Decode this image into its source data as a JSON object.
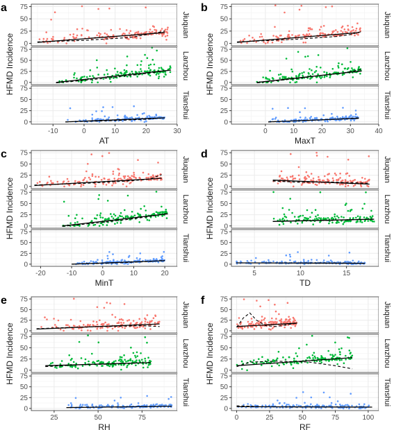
{
  "figure": {
    "panel_letters": [
      "a",
      "b",
      "c",
      "d",
      "e",
      "f"
    ],
    "facet_labels": [
      "Jiuquan",
      "Lanzhou",
      "Tianshui"
    ],
    "ylabel": "HFMD Incidence",
    "y_ticks": [
      "0",
      "25",
      "50",
      "75"
    ]
  },
  "colors": {
    "Jiuquan": "#f8766d",
    "Lanzhou": "#00ba38",
    "Tianshui": "#619cff",
    "strip_bg": "#ffffff",
    "grid": "#ebebeb",
    "panel_border": "#333333",
    "fit_line": "#000000"
  },
  "chart_data": [
    {
      "type": "scatter",
      "panel": "a",
      "xlabel": "AT",
      "xlim": [
        -17,
        30
      ],
      "xticks": [
        -10,
        0,
        10,
        20,
        30
      ],
      "ylim": [
        -5,
        80
      ],
      "grid": true,
      "series": [
        {
          "name": "Jiuquan",
          "x_range": [
            -15,
            27
          ],
          "y_range": [
            0,
            78
          ],
          "linear_fit": [
            [
              -15,
              2
            ],
            [
              26,
              22
            ]
          ],
          "smooth_fit": [
            [
              -15,
              3
            ],
            [
              0,
              6
            ],
            [
              15,
              12
            ],
            [
              22,
              20
            ],
            [
              26,
              25
            ]
          ]
        },
        {
          "name": "Lanzhou",
          "x_range": [
            -9,
            28
          ],
          "y_range": [
            0,
            80
          ],
          "linear_fit": [
            [
              -9,
              0
            ],
            [
              28,
              28
            ]
          ],
          "smooth_fit": [
            [
              -9,
              -1
            ],
            [
              5,
              8
            ],
            [
              15,
              16
            ],
            [
              22,
              22
            ],
            [
              28,
              28
            ]
          ]
        },
        {
          "name": "Tianshui",
          "x_range": [
            -6,
            26
          ],
          "y_range": [
            0,
            35
          ],
          "linear_fit": [
            [
              -6,
              0
            ],
            [
              26,
              9
            ]
          ],
          "smooth_fit": [
            [
              -6,
              0
            ],
            [
              10,
              3
            ],
            [
              20,
              6
            ],
            [
              26,
              9
            ]
          ]
        }
      ]
    },
    {
      "type": "scatter",
      "panel": "b",
      "xlabel": "MaxT",
      "xlim": [
        -12,
        40
      ],
      "xticks": [
        0,
        10,
        20,
        30,
        40
      ],
      "ylim": [
        -5,
        80
      ],
      "grid": true,
      "series": [
        {
          "name": "Jiuquan",
          "x_range": [
            -10,
            34
          ],
          "y_range": [
            0,
            78
          ],
          "linear_fit": [
            [
              -10,
              2
            ],
            [
              33,
              22
            ]
          ],
          "smooth_fit": [
            [
              -10,
              3
            ],
            [
              10,
              8
            ],
            [
              25,
              14
            ],
            [
              30,
              18
            ],
            [
              34,
              24
            ]
          ]
        },
        {
          "name": "Lanzhou",
          "x_range": [
            -3,
            34
          ],
          "y_range": [
            0,
            80
          ],
          "linear_fit": [
            [
              -3,
              0
            ],
            [
              34,
              26
            ]
          ],
          "smooth_fit": [
            [
              -3,
              -1
            ],
            [
              10,
              8
            ],
            [
              20,
              16
            ],
            [
              28,
              22
            ],
            [
              34,
              30
            ]
          ]
        },
        {
          "name": "Tianshui",
          "x_range": [
            1,
            33
          ],
          "y_range": [
            0,
            33
          ],
          "linear_fit": [
            [
              1,
              0
            ],
            [
              33,
              8
            ]
          ],
          "smooth_fit": [
            [
              1,
              0
            ],
            [
              15,
              3
            ],
            [
              25,
              6
            ],
            [
              33,
              9
            ]
          ]
        }
      ]
    },
    {
      "type": "scatter",
      "panel": "c",
      "xlabel": "MinT",
      "xlim": [
        -23,
        24
      ],
      "xticks": [
        -20,
        -10,
        0,
        10,
        20
      ],
      "ylim": [
        -5,
        80
      ],
      "grid": true,
      "series": [
        {
          "name": "Jiuquan",
          "x_range": [
            -22,
            19
          ],
          "y_range": [
            0,
            78
          ],
          "linear_fit": [
            [
              -22,
              2
            ],
            [
              19,
              18
            ]
          ],
          "smooth_fit": [
            [
              -22,
              3
            ],
            [
              -5,
              7
            ],
            [
              8,
              12
            ],
            [
              15,
              16
            ],
            [
              19,
              26
            ]
          ]
        },
        {
          "name": "Lanzhou",
          "x_range": [
            -13,
            21
          ],
          "y_range": [
            0,
            80
          ],
          "linear_fit": [
            [
              -13,
              0
            ],
            [
              21,
              27
            ]
          ],
          "smooth_fit": [
            [
              -13,
              -1
            ],
            [
              0,
              8
            ],
            [
              10,
              16
            ],
            [
              16,
              22
            ],
            [
              21,
              28
            ]
          ]
        },
        {
          "name": "Tianshui",
          "x_range": [
            -10,
            20
          ],
          "y_range": [
            0,
            30
          ],
          "linear_fit": [
            [
              -10,
              0
            ],
            [
              20,
              8
            ]
          ],
          "smooth_fit": [
            [
              -10,
              0
            ],
            [
              5,
              3
            ],
            [
              15,
              6
            ],
            [
              20,
              9
            ]
          ]
        }
      ]
    },
    {
      "type": "scatter",
      "panel": "d",
      "xlabel": "TD",
      "xlim": [
        2.5,
        18.5
      ],
      "xticks": [
        5,
        10,
        15
      ],
      "ylim": [
        -5,
        80
      ],
      "grid": true,
      "series": [
        {
          "name": "Jiuquan",
          "x_range": [
            7,
            17.5
          ],
          "y_range": [
            0,
            78
          ],
          "linear_fit": [
            [
              7,
              14
            ],
            [
              17.5,
              5
            ]
          ],
          "smooth_fit": [
            [
              7,
              12
            ],
            [
              10,
              9
            ],
            [
              13,
              10
            ],
            [
              16,
              8
            ],
            [
              17.5,
              7
            ]
          ]
        },
        {
          "name": "Lanzhou",
          "x_range": [
            7,
            18
          ],
          "y_range": [
            0,
            80
          ],
          "linear_fit": [
            [
              7,
              10
            ],
            [
              18,
              15
            ]
          ],
          "smooth_fit": [
            [
              7,
              10
            ],
            [
              10,
              12
            ],
            [
              13,
              12
            ],
            [
              16,
              14
            ],
            [
              18,
              15
            ]
          ]
        },
        {
          "name": "Tianshui",
          "x_range": [
            3,
            17
          ],
          "y_range": [
            0,
            28
          ],
          "linear_fit": [
            [
              3,
              3
            ],
            [
              17,
              2
            ]
          ],
          "smooth_fit": [
            [
              3,
              3
            ],
            [
              8,
              3
            ],
            [
              12,
              3
            ],
            [
              17,
              2
            ]
          ]
        }
      ]
    },
    {
      "type": "scatter",
      "panel": "e",
      "xlabel": "RH",
      "xlim": [
        12,
        95
      ],
      "xticks": [
        25,
        50,
        75
      ],
      "ylim": [
        -5,
        80
      ],
      "grid": true,
      "series": [
        {
          "name": "Jiuquan",
          "x_range": [
            15,
            85
          ],
          "y_range": [
            0,
            78
          ],
          "linear_fit": [
            [
              15,
              4
            ],
            [
              85,
              16
            ]
          ],
          "smooth_fit": [
            [
              15,
              5
            ],
            [
              35,
              8
            ],
            [
              55,
              10
            ],
            [
              75,
              12
            ],
            [
              85,
              10
            ]
          ]
        },
        {
          "name": "Lanzhou",
          "x_range": [
            20,
            80
          ],
          "y_range": [
            0,
            80
          ],
          "linear_fit": [
            [
              20,
              10
            ],
            [
              80,
              17
            ]
          ],
          "smooth_fit": [
            [
              20,
              8
            ],
            [
              40,
              12
            ],
            [
              60,
              14
            ],
            [
              80,
              17
            ]
          ]
        },
        {
          "name": "Tianshui",
          "x_range": [
            32,
            92
          ],
          "y_range": [
            0,
            30
          ],
          "linear_fit": [
            [
              32,
              2
            ],
            [
              92,
              5
            ]
          ],
          "smooth_fit": [
            [
              32,
              2
            ],
            [
              55,
              3
            ],
            [
              75,
              4
            ],
            [
              92,
              5
            ]
          ]
        }
      ]
    },
    {
      "type": "scatter",
      "panel": "f",
      "xlabel": "RF",
      "xlim": [
        -4,
        108
      ],
      "xticks": [
        0,
        25,
        50,
        75,
        100
      ],
      "ylim": [
        -5,
        80
      ],
      "grid": true,
      "series": [
        {
          "name": "Jiuquan",
          "x_range": [
            0,
            46
          ],
          "y_range": [
            0,
            76
          ],
          "linear_fit": [
            [
              0,
              10
            ],
            [
              46,
              18
            ]
          ],
          "smooth_fit": [
            [
              0,
              8
            ],
            [
              5,
              30
            ],
            [
              10,
              42
            ],
            [
              15,
              25
            ],
            [
              22,
              12
            ],
            [
              30,
              10
            ],
            [
              46,
              18
            ]
          ]
        },
        {
          "name": "Lanzhou",
          "x_range": [
            0,
            88
          ],
          "y_range": [
            0,
            80
          ],
          "linear_fit": [
            [
              0,
              10
            ],
            [
              88,
              28
            ]
          ],
          "smooth_fit": [
            [
              0,
              8
            ],
            [
              10,
              18
            ],
            [
              30,
              20
            ],
            [
              55,
              18
            ],
            [
              75,
              10
            ],
            [
              88,
              3
            ]
          ]
        },
        {
          "name": "Tianshui",
          "x_range": [
            0,
            103
          ],
          "y_range": [
            0,
            38
          ],
          "linear_fit": [
            [
              0,
              4
            ],
            [
              103,
              3
            ]
          ],
          "smooth_fit": [
            [
              0,
              6
            ],
            [
              20,
              4
            ],
            [
              50,
              3
            ],
            [
              103,
              3
            ]
          ]
        }
      ]
    }
  ]
}
